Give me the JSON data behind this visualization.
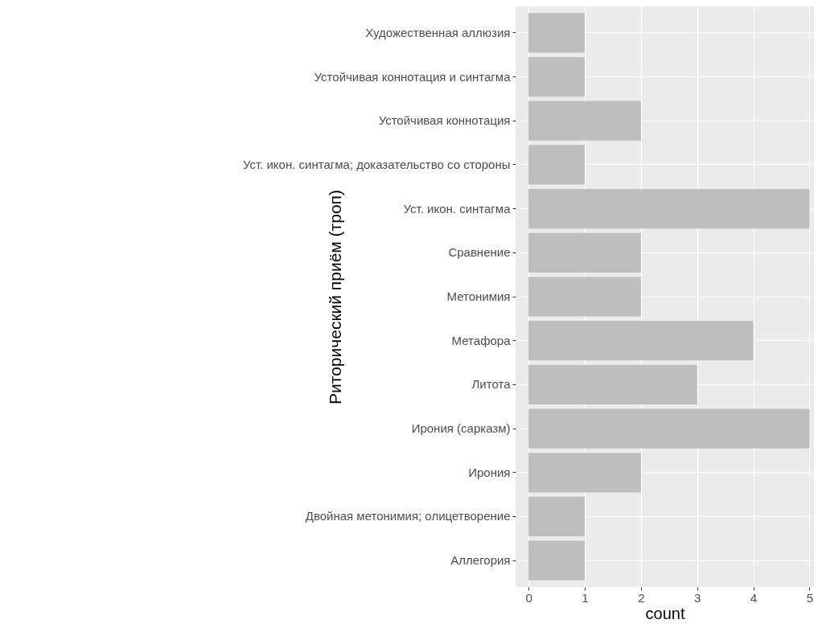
{
  "chart_data": {
    "type": "bar",
    "orientation": "horizontal",
    "ylabel": "Риторический приём (троп)",
    "xlabel": "count",
    "categories": [
      "Художественная аллюзия",
      "Устойчивая коннотация и синтагма",
      "Устойчивая коннотация",
      "Уст. икон. синтагма; доказательство со стороны",
      "Уст. икон. синтагма",
      "Сравнение",
      "Метонимия",
      "Метафора",
      "Литота",
      "Ирония (сарказм)",
      "Ирония",
      "Двойная метонимия; олицетворение",
      "Аллегория"
    ],
    "values": [
      1,
      1,
      2,
      1,
      5,
      2,
      2,
      4,
      3,
      5,
      2,
      1,
      1
    ],
    "color": "#bebebe",
    "xlim": [
      -0.23,
      5.08
    ],
    "xticks": [
      0,
      1,
      2,
      3,
      4,
      5
    ],
    "grid": true
  }
}
